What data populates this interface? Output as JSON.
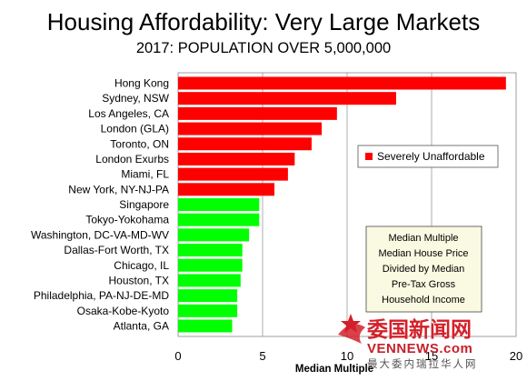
{
  "chart_data": {
    "type": "bar",
    "orientation": "horizontal",
    "title": "Housing Affordability: Very Large Markets",
    "subtitle": "2017: POPULATION OVER 5,000,000",
    "xlabel": "Median Multiple",
    "ylabel": "",
    "xlim": [
      0,
      20
    ],
    "xticks": [
      0,
      5,
      10,
      15,
      20
    ],
    "grid": "vertical",
    "categories": [
      "Hong Kong",
      "Sydney, NSW",
      "Los Angeles, CA",
      "London (GLA)",
      "Toronto, ON",
      "London Exurbs",
      "Miami, FL",
      "New York, NY-NJ-PA",
      "Singapore",
      "Tokyo-Yokohama",
      "Washington, DC-VA-MD-WV",
      "Dallas-Fort Worth, TX",
      "Chicago, IL",
      "Houston, TX",
      "Philadelphia, PA-NJ-DE-MD",
      "Osaka-Kobe-Kyoto",
      "Atlanta, GA"
    ],
    "values": [
      19.4,
      12.9,
      9.4,
      8.5,
      7.9,
      6.9,
      6.5,
      5.7,
      4.8,
      4.8,
      4.2,
      3.8,
      3.8,
      3.7,
      3.5,
      3.5,
      3.2
    ],
    "bar_colors": [
      "#ff0000",
      "#ff0000",
      "#ff0000",
      "#ff0000",
      "#ff0000",
      "#ff0000",
      "#ff0000",
      "#ff0000",
      "#00ff00",
      "#00ff00",
      "#00ff00",
      "#00ff00",
      "#00ff00",
      "#00ff00",
      "#00ff00",
      "#00ff00",
      "#00ff00"
    ],
    "legend": {
      "placement": "right",
      "entries": [
        {
          "label": "Severely Unaffordable",
          "color": "#ff0000"
        }
      ]
    },
    "note_box": {
      "placement": "bottom-right",
      "lines": [
        "Median Multiple",
        "Median House Price",
        "Divided by Median",
        "Pre-Tax Gross",
        "Household Income"
      ]
    }
  },
  "watermark": {
    "logo_text": "委国新闻网",
    "site_text": "VENNEWS.com",
    "tagline": "最大委内瑞拉华人网"
  }
}
